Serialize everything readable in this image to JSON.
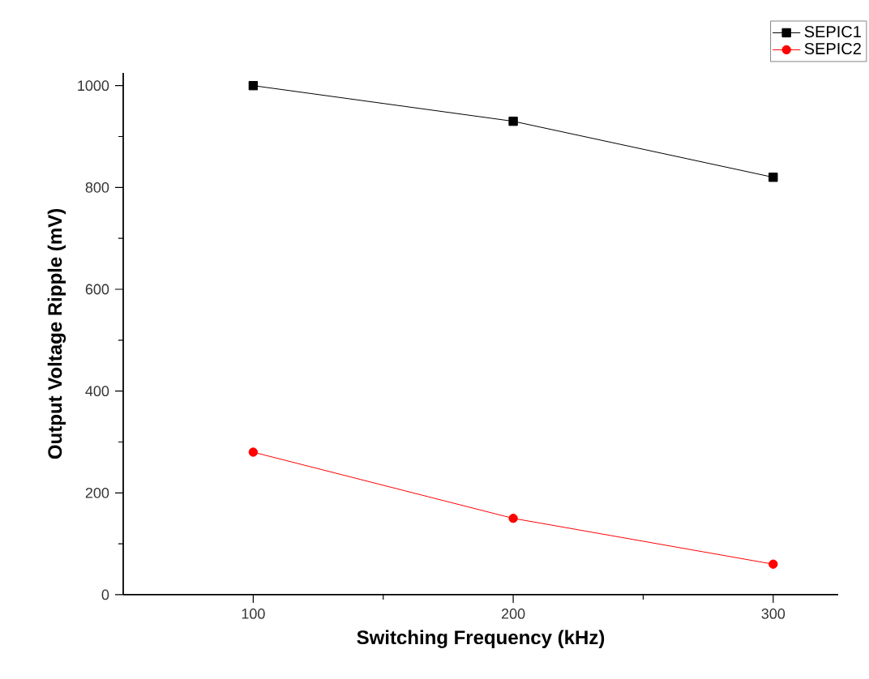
{
  "chart_data": {
    "type": "line",
    "xlabel": "Switching Frequency (kHz)",
    "ylabel": "Output Voltage Ripple (mV)",
    "x": [
      100,
      200,
      300
    ],
    "series": [
      {
        "name": "SEPIC1",
        "color": "#000000",
        "values": [
          1000,
          930,
          820
        ],
        "marker": "square"
      },
      {
        "name": "SEPIC2",
        "color": "#ff0000",
        "values": [
          280,
          150,
          60
        ],
        "marker": "circle"
      }
    ],
    "xlim": [
      50,
      325
    ],
    "xticks": [
      100,
      200,
      300
    ],
    "ylim": [
      0,
      1025
    ],
    "yticks": [
      0,
      200,
      400,
      600,
      800,
      1000
    ],
    "grid": false,
    "legend": "top right",
    "line_style": "solid"
  }
}
